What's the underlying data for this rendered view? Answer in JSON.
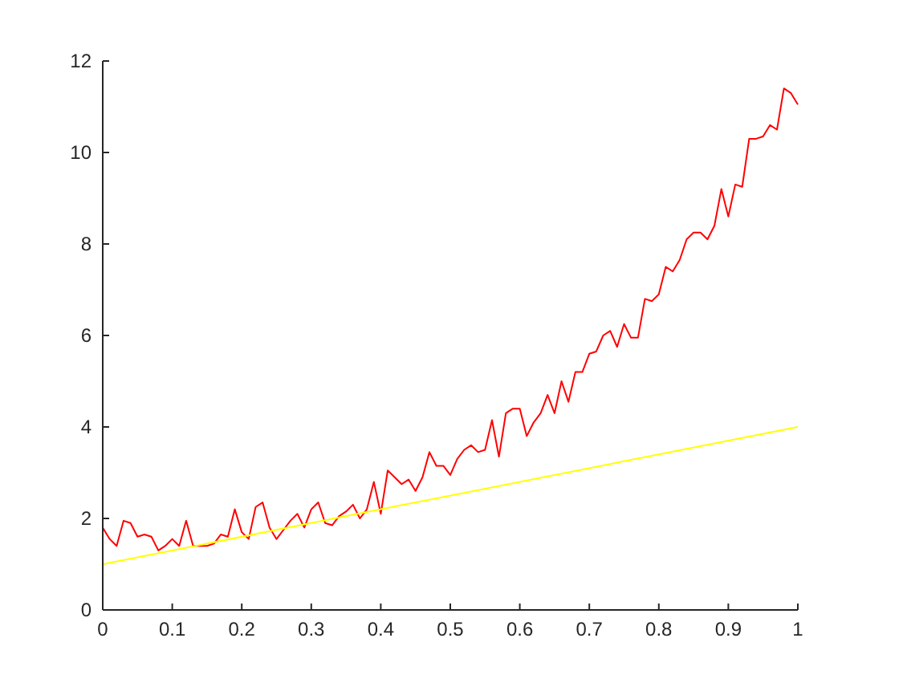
{
  "chart_data": {
    "type": "line",
    "xlim": [
      0,
      1
    ],
    "ylim": [
      0,
      12
    ],
    "xticks": [
      0,
      0.1,
      0.2,
      0.3,
      0.4,
      0.5,
      0.6,
      0.7,
      0.8,
      0.9,
      1
    ],
    "yticks": [
      0,
      2,
      4,
      6,
      8,
      10,
      12
    ],
    "grid": false,
    "series": [
      {
        "color": "#ff0000",
        "x": [
          0,
          0.01,
          0.02,
          0.03,
          0.04,
          0.05,
          0.06,
          0.07,
          0.08,
          0.09,
          0.1,
          0.11,
          0.12,
          0.13,
          0.14,
          0.15,
          0.16,
          0.17,
          0.18,
          0.19,
          0.2,
          0.21,
          0.22,
          0.23,
          0.24,
          0.25,
          0.26,
          0.27,
          0.28,
          0.29,
          0.3,
          0.31,
          0.32,
          0.33,
          0.34,
          0.35,
          0.36,
          0.37,
          0.38,
          0.39,
          0.4,
          0.41,
          0.42,
          0.43,
          0.44,
          0.45,
          0.46,
          0.47,
          0.48,
          0.49,
          0.5,
          0.51,
          0.52,
          0.53,
          0.54,
          0.55,
          0.56,
          0.57,
          0.58,
          0.59,
          0.6,
          0.61,
          0.62,
          0.63,
          0.64,
          0.65,
          0.66,
          0.67,
          0.68,
          0.69,
          0.7,
          0.71,
          0.72,
          0.73,
          0.74,
          0.75,
          0.76,
          0.77,
          0.78,
          0.79,
          0.8,
          0.81,
          0.82,
          0.83,
          0.84,
          0.85,
          0.86,
          0.87,
          0.88,
          0.89,
          0.9,
          0.91,
          0.92,
          0.93,
          0.94,
          0.95,
          0.96,
          0.97,
          0.98,
          0.99,
          1
        ],
        "values": [
          1.8,
          1.55,
          1.4,
          1.95,
          1.9,
          1.6,
          1.65,
          1.6,
          1.3,
          1.4,
          1.55,
          1.4,
          1.95,
          1.4,
          1.4,
          1.4,
          1.45,
          1.65,
          1.6,
          2.2,
          1.7,
          1.55,
          2.25,
          2.35,
          1.8,
          1.55,
          1.75,
          1.95,
          2.1,
          1.8,
          2.2,
          2.35,
          1.9,
          1.85,
          2.05,
          2.15,
          2.3,
          2.0,
          2.2,
          2.8,
          2.1,
          3.05,
          2.9,
          2.75,
          2.85,
          2.6,
          2.9,
          3.45,
          3.15,
          3.15,
          2.95,
          3.3,
          3.5,
          3.6,
          3.45,
          3.5,
          4.15,
          3.35,
          4.3,
          4.4,
          4.4,
          3.8,
          4.1,
          4.3,
          4.7,
          4.3,
          5.0,
          4.55,
          5.2,
          5.2,
          5.6,
          5.65,
          6.0,
          6.1,
          5.75,
          6.25,
          5.95,
          5.95,
          6.8,
          6.75,
          6.9,
          7.5,
          7.4,
          7.65,
          8.1,
          8.25,
          8.25,
          8.1,
          8.4,
          9.2,
          8.6,
          9.3,
          9.25,
          10.3,
          10.3,
          10.35,
          10.6,
          10.5,
          11.4,
          11.3,
          11.05
        ]
      },
      {
        "color": "#ffff00",
        "x": [
          0,
          1
        ],
        "values": [
          1,
          4
        ]
      }
    ]
  }
}
